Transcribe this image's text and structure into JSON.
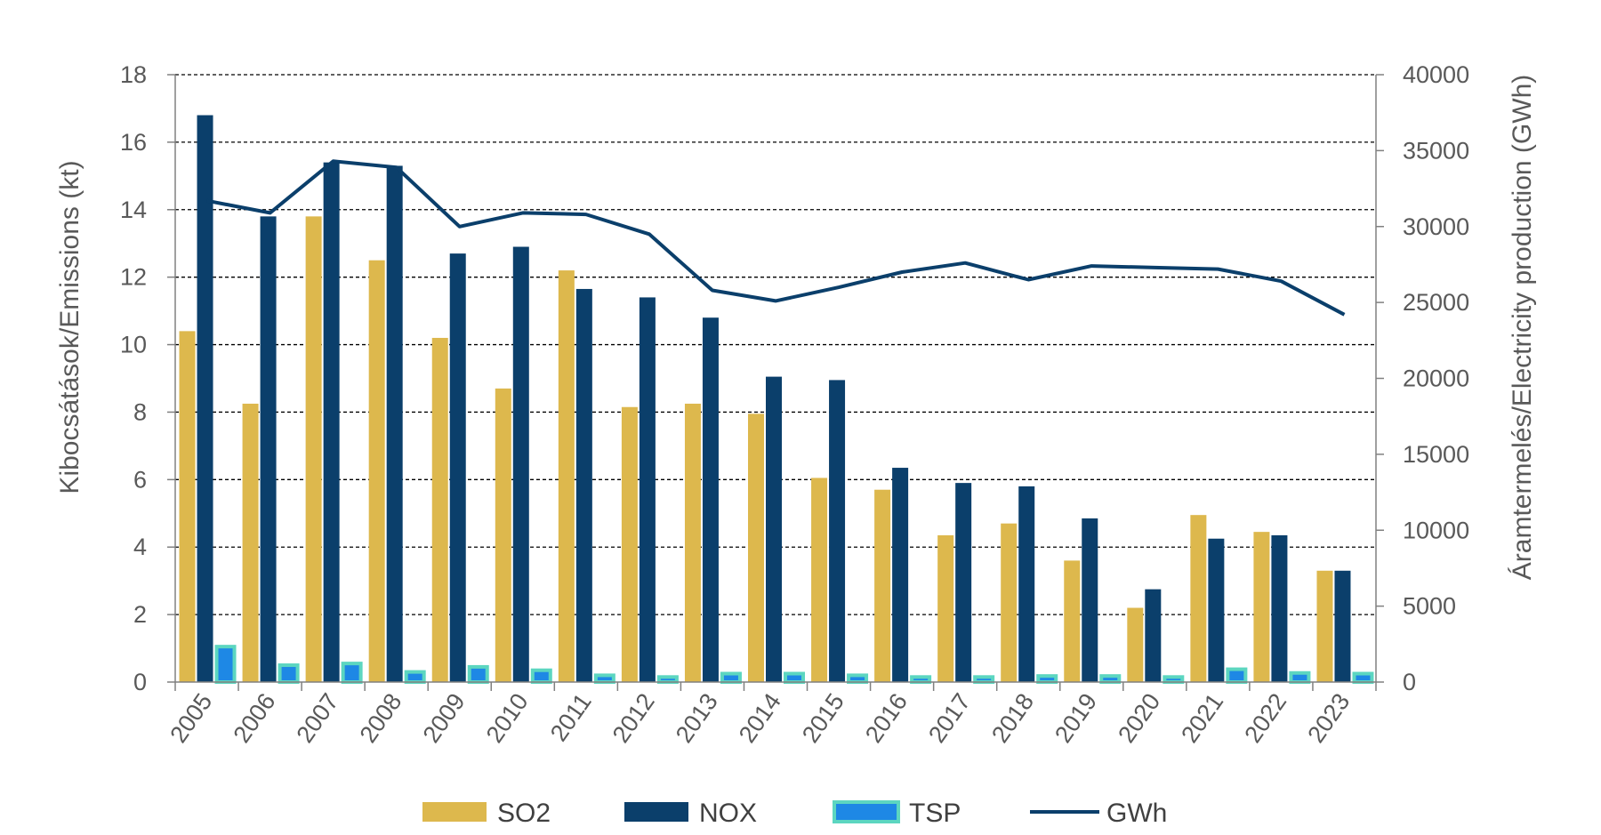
{
  "chart_data": {
    "type": "bar",
    "categories": [
      "2005",
      "2006",
      "2007",
      "2008",
      "2009",
      "2010",
      "2011",
      "2012",
      "2013",
      "2014",
      "2015",
      "2016",
      "2017",
      "2018",
      "2019",
      "2020",
      "2021",
      "2022",
      "2023"
    ],
    "series": [
      {
        "name": "SO2",
        "kind": "bar",
        "axis": "left",
        "color": "#DDB84D",
        "values": [
          10.4,
          8.25,
          13.8,
          12.5,
          10.2,
          8.7,
          12.2,
          8.15,
          8.25,
          7.95,
          6.05,
          5.7,
          4.35,
          4.7,
          3.6,
          2.2,
          4.95,
          4.45,
          3.3
        ]
      },
      {
        "name": "NOX",
        "kind": "bar",
        "axis": "left",
        "color": "#0B3F6B",
        "values": [
          16.8,
          13.8,
          15.4,
          15.3,
          12.7,
          12.9,
          11.65,
          11.4,
          10.8,
          9.05,
          8.95,
          6.35,
          5.9,
          5.8,
          4.85,
          2.75,
          4.25,
          4.35,
          3.3
        ]
      },
      {
        "name": "TSP",
        "kind": "bar",
        "axis": "left",
        "color": "#1E88E5",
        "border_color": "#5CD6C0",
        "values": [
          1.05,
          0.5,
          0.55,
          0.3,
          0.45,
          0.35,
          0.2,
          0.15,
          0.25,
          0.25,
          0.2,
          0.15,
          0.15,
          0.18,
          0.18,
          0.15,
          0.38,
          0.27,
          0.25
        ]
      },
      {
        "name": "GWh",
        "kind": "line",
        "axis": "right",
        "color": "#0B3F6B",
        "values": [
          31700,
          30900,
          34300,
          33900,
          30000,
          30900,
          30800,
          29500,
          25800,
          25100,
          26000,
          27000,
          27600,
          26500,
          27400,
          27300,
          27200,
          26400,
          24200
        ]
      }
    ],
    "ylabel": "Kibocsátások/Emissions (kt)",
    "y2label": "Áramtermelés/Electricity production (GWh)",
    "ylim": [
      0,
      18
    ],
    "y2lim": [
      0,
      40000
    ],
    "yticks": [
      "0",
      "2",
      "4",
      "6",
      "8",
      "10",
      "12",
      "14",
      "16",
      "18"
    ],
    "y2ticks": [
      "0",
      "5000",
      "10000",
      "15000",
      "20000",
      "25000",
      "30000",
      "35000",
      "40000"
    ],
    "grid": "horizontal-dashed",
    "legend_position": "bottom"
  }
}
